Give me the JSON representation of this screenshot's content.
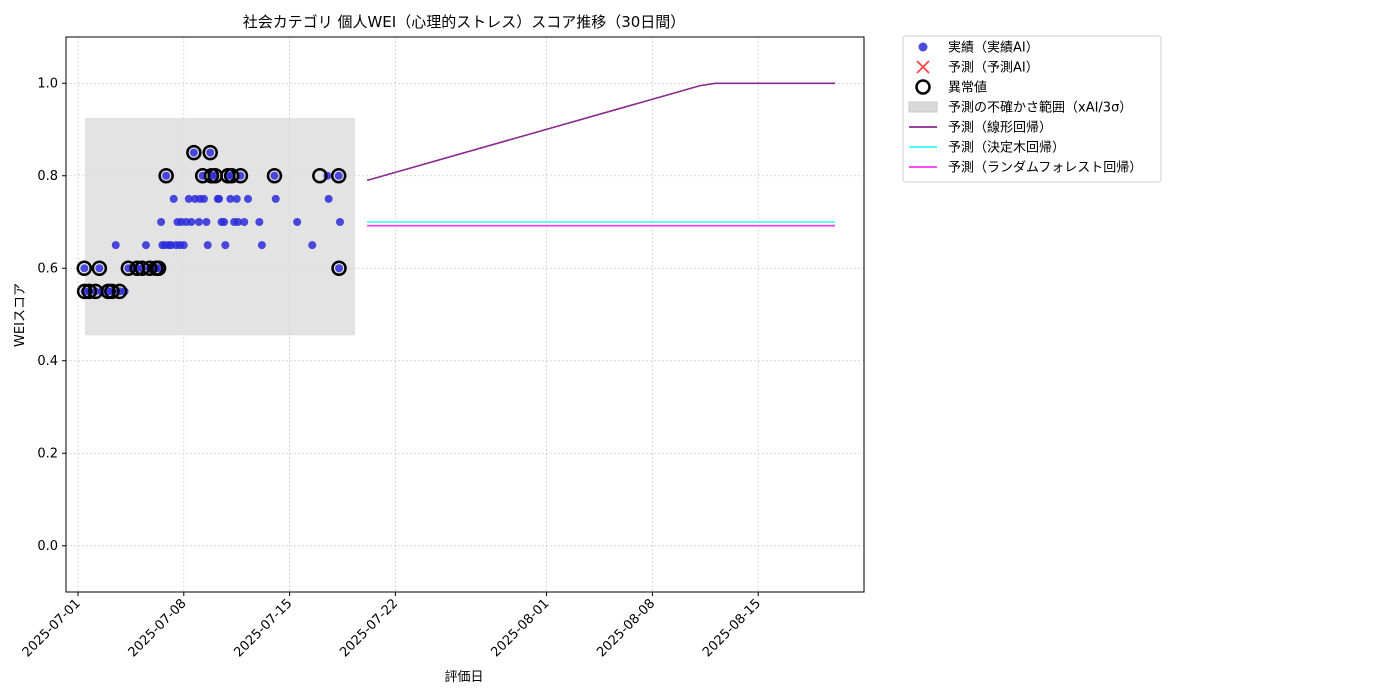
{
  "chart_data": {
    "type": "scatter",
    "title": "社会カテゴリ 個人WEI（心理的ストレス）スコア推移（30日間）",
    "xlabel": "評価日",
    "ylabel": "WEIスコア",
    "x_range": [
      "2025-06-30T05:00",
      "2025-08-22T00:00"
    ],
    "ylim": [
      -0.1,
      1.1
    ],
    "y_ticks": [
      0.0,
      0.2,
      0.4,
      0.6,
      0.8,
      1.0
    ],
    "y_tick_labels": [
      "0.0",
      "0.2",
      "0.4",
      "0.6",
      "0.8",
      "1.0"
    ],
    "x_ticks": [
      "2025-07-01",
      "2025-07-08",
      "2025-07-15",
      "2025-07-22",
      "2025-08-01",
      "2025-08-08",
      "2025-08-15"
    ],
    "x_tick_labels": [
      "2025-07-01",
      "2025-07-08",
      "2025-07-15",
      "2025-07-22",
      "2025-08-01",
      "2025-08-08",
      "2025-08-15"
    ],
    "grid": true,
    "legend_position": "outside-right-top",
    "colors": {
      "actual": "#2b2bdb",
      "predicted": "#ff4444",
      "anomaly_edge": "#000000",
      "band": "#d9d9d9",
      "linear": "#8b2a8f",
      "tree": "#33ffff",
      "forest": "#ff33ff",
      "grid": "#cccccc"
    },
    "legend": [
      {
        "label": "実績（実績AI）",
        "kind": "dot",
        "color": "#2b2bdb"
      },
      {
        "label": "予測（予測AI）",
        "kind": "cross",
        "color": "#ff4444"
      },
      {
        "label": "異常値",
        "kind": "ring",
        "color": "#000000"
      },
      {
        "label": "予測の不確かさ範囲（xAI/3σ）",
        "kind": "band",
        "color": "#d9d9d9"
      },
      {
        "label": "予測（線形回帰）",
        "kind": "line",
        "color": "#8b2a8f"
      },
      {
        "label": "予測（決定木回帰）",
        "kind": "line",
        "color": "#33ffff"
      },
      {
        "label": "予測（ランダムフォレスト回帰）",
        "kind": "line",
        "color": "#ff33ff"
      }
    ],
    "uncertainty_band": {
      "x0": "2025-07-01T11:00",
      "x1": "2025-07-19T08:00",
      "y0": 0.455,
      "y1": 0.925
    },
    "series": [
      {
        "name": "実績（実績AI）",
        "kind": "scatter",
        "points": [
          [
            "2025-07-01T10:00",
            0.6
          ],
          [
            "2025-07-01T10:30",
            0.55
          ],
          [
            "2025-07-01T18:00",
            0.55
          ],
          [
            "2025-07-02T04:00",
            0.55
          ],
          [
            "2025-07-02T10:00",
            0.6
          ],
          [
            "2025-07-02T14:00",
            0.55
          ],
          [
            "2025-07-03T00:00",
            0.55
          ],
          [
            "2025-07-03T06:00",
            0.55
          ],
          [
            "2025-07-03T12:00",
            0.65
          ],
          [
            "2025-07-03T18:00",
            0.55
          ],
          [
            "2025-07-04T02:00",
            0.55
          ],
          [
            "2025-07-04T08:00",
            0.6
          ],
          [
            "2025-07-04T16:00",
            0.6
          ],
          [
            "2025-07-04T22:00",
            0.6
          ],
          [
            "2025-07-05T06:00",
            0.6
          ],
          [
            "2025-07-05T12:00",
            0.65
          ],
          [
            "2025-07-05T18:00",
            0.6
          ],
          [
            "2025-07-06T00:00",
            0.6
          ],
          [
            "2025-07-06T04:00",
            0.6
          ],
          [
            "2025-07-06T08:00",
            0.6
          ],
          [
            "2025-07-06T12:00",
            0.7
          ],
          [
            "2025-07-06T14:00",
            0.65
          ],
          [
            "2025-07-06T18:00",
            0.65
          ],
          [
            "2025-07-06T20:00",
            0.8
          ],
          [
            "2025-07-07T00:00",
            0.65
          ],
          [
            "2025-07-07T04:00",
            0.65
          ],
          [
            "2025-07-07T08:00",
            0.75
          ],
          [
            "2025-07-07T12:00",
            0.65
          ],
          [
            "2025-07-07T14:00",
            0.7
          ],
          [
            "2025-07-07T18:00",
            0.65
          ],
          [
            "2025-07-07T20:00",
            0.7
          ],
          [
            "2025-07-08T00:00",
            0.65
          ],
          [
            "2025-07-08T04:00",
            0.7
          ],
          [
            "2025-07-08T08:00",
            0.75
          ],
          [
            "2025-07-08T12:00",
            0.7
          ],
          [
            "2025-07-08T16:00",
            0.85
          ],
          [
            "2025-07-08T18:00",
            0.75
          ],
          [
            "2025-07-09T00:00",
            0.7
          ],
          [
            "2025-07-09T02:00",
            0.75
          ],
          [
            "2025-07-09T06:00",
            0.8
          ],
          [
            "2025-07-09T08:00",
            0.75
          ],
          [
            "2025-07-09T12:00",
            0.7
          ],
          [
            "2025-07-09T14:00",
            0.65
          ],
          [
            "2025-07-09T18:00",
            0.85
          ],
          [
            "2025-07-09T20:00",
            0.8
          ],
          [
            "2025-07-10T02:00",
            0.8
          ],
          [
            "2025-07-10T06:00",
            0.75
          ],
          [
            "2025-07-10T08:00",
            0.75
          ],
          [
            "2025-07-10T12:00",
            0.7
          ],
          [
            "2025-07-10T16:00",
            0.7
          ],
          [
            "2025-07-10T18:00",
            0.65
          ],
          [
            "2025-07-10T22:00",
            0.8
          ],
          [
            "2025-07-11T02:00",
            0.75
          ],
          [
            "2025-07-11T04:00",
            0.8
          ],
          [
            "2025-07-11T08:00",
            0.7
          ],
          [
            "2025-07-11T12:00",
            0.75
          ],
          [
            "2025-07-11T14:00",
            0.7
          ],
          [
            "2025-07-11T18:00",
            0.8
          ],
          [
            "2025-07-12T00:00",
            0.7
          ],
          [
            "2025-07-12T06:00",
            0.75
          ],
          [
            "2025-07-13T00:00",
            0.7
          ],
          [
            "2025-07-13T04:00",
            0.65
          ],
          [
            "2025-07-14T00:00",
            0.8
          ],
          [
            "2025-07-14T02:00",
            0.75
          ],
          [
            "2025-07-15T12:00",
            0.7
          ],
          [
            "2025-07-16T12:00",
            0.65
          ],
          [
            "2025-07-17T12:00",
            0.8
          ],
          [
            "2025-07-17T14:00",
            0.75
          ],
          [
            "2025-07-18T06:00",
            0.8
          ],
          [
            "2025-07-18T08:00",
            0.7
          ],
          [
            "2025-07-18T06:30",
            0.6
          ]
        ]
      },
      {
        "name": "異常値",
        "kind": "ring",
        "points": [
          [
            "2025-07-01T10:00",
            0.6
          ],
          [
            "2025-07-01T10:30",
            0.55
          ],
          [
            "2025-07-01T18:00",
            0.55
          ],
          [
            "2025-07-02T04:00",
            0.55
          ],
          [
            "2025-07-02T10:00",
            0.6
          ],
          [
            "2025-07-03T00:00",
            0.55
          ],
          [
            "2025-07-03T06:00",
            0.55
          ],
          [
            "2025-07-03T18:00",
            0.55
          ],
          [
            "2025-07-04T08:00",
            0.6
          ],
          [
            "2025-07-04T22:00",
            0.6
          ],
          [
            "2025-07-05T06:00",
            0.6
          ],
          [
            "2025-07-05T18:00",
            0.6
          ],
          [
            "2025-07-06T04:00",
            0.6
          ],
          [
            "2025-07-06T08:00",
            0.6
          ],
          [
            "2025-07-06T20:00",
            0.8
          ],
          [
            "2025-07-08T16:00",
            0.85
          ],
          [
            "2025-07-09T06:00",
            0.8
          ],
          [
            "2025-07-09T18:00",
            0.85
          ],
          [
            "2025-07-09T20:00",
            0.8
          ],
          [
            "2025-07-10T02:00",
            0.8
          ],
          [
            "2025-07-10T22:00",
            0.8
          ],
          [
            "2025-07-11T04:00",
            0.8
          ],
          [
            "2025-07-11T18:00",
            0.8
          ],
          [
            "2025-07-14T00:00",
            0.8
          ],
          [
            "2025-07-17T00:00",
            0.8
          ],
          [
            "2025-07-18T06:00",
            0.8
          ],
          [
            "2025-07-18T06:30",
            0.6
          ]
        ]
      },
      {
        "name": "予測（線形回帰）",
        "kind": "line",
        "points": [
          [
            "2025-07-20T03:00",
            0.79
          ],
          [
            "2025-08-11T04:00",
            0.995
          ],
          [
            "2025-08-12T04:00",
            1.0
          ],
          [
            "2025-08-20T02:00",
            1.0
          ]
        ]
      },
      {
        "name": "予測（決定木回帰）",
        "kind": "line",
        "points": [
          [
            "2025-07-20T03:00",
            0.7
          ],
          [
            "2025-08-20T02:00",
            0.7
          ]
        ]
      },
      {
        "name": "予測（ランダムフォレスト回帰）",
        "kind": "line",
        "points": [
          [
            "2025-07-20T03:00",
            0.692
          ],
          [
            "2025-08-20T02:00",
            0.692
          ]
        ]
      }
    ]
  }
}
